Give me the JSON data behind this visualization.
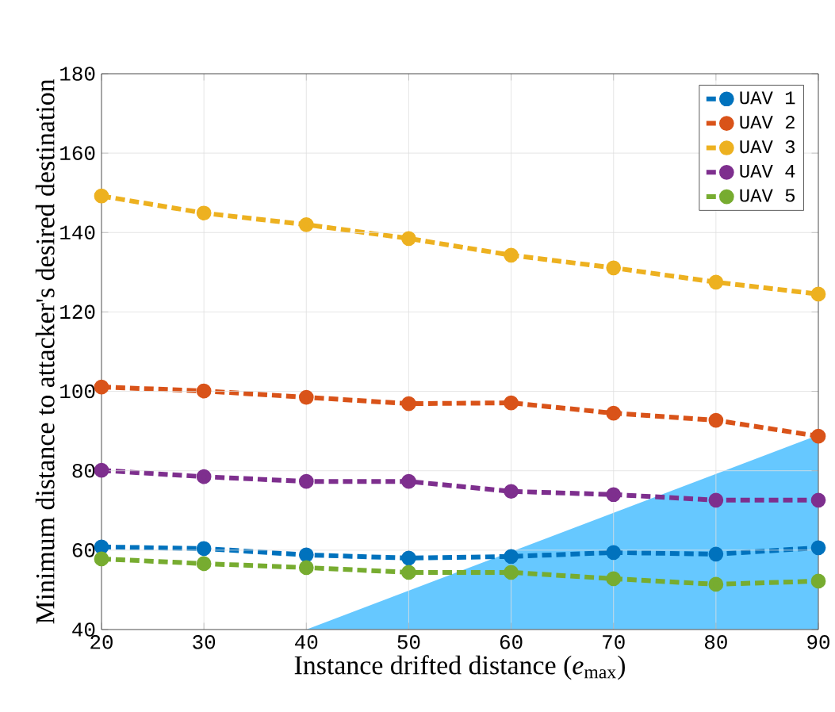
{
  "chart_data": {
    "type": "line",
    "xlabel": "Instance drifted distance (*e*$_{max}$)",
    "ylabel": "Minimum distance to attacker's desired destination",
    "x": [
      20,
      30,
      40,
      50,
      60,
      70,
      80,
      90
    ],
    "series": [
      {
        "type": "area",
        "marker": "none",
        "color": "#66c8ff",
        "x": [
          40,
          90
        ],
        "values": [
          40,
          89
        ]
      },
      {
        "name": "UAV 1",
        "color": "#0072bd",
        "values": [
          60.8,
          60.4,
          58.8,
          58.0,
          58.4,
          59.4,
          59.0,
          60.6
        ]
      },
      {
        "name": "UAV 2",
        "color": "#d95319",
        "values": [
          101.1,
          100.1,
          98.5,
          96.9,
          97.1,
          94.5,
          92.7,
          88.7
        ]
      },
      {
        "name": "UAV 3",
        "color": "#edb120",
        "values": [
          149.2,
          144.9,
          142.0,
          138.5,
          134.3,
          131.1,
          127.5,
          124.5
        ]
      },
      {
        "name": "UAV 4",
        "color": "#7e2f8e",
        "values": [
          80.1,
          78.5,
          77.3,
          77.3,
          74.8,
          74.0,
          72.6,
          72.6
        ]
      },
      {
        "name": "UAV 5",
        "color": "#77ac30",
        "values": [
          57.8,
          56.6,
          55.6,
          54.4,
          54.4,
          52.8,
          51.4,
          52.2
        ]
      }
    ],
    "xlim": [
      20,
      90
    ],
    "ylim": [
      40,
      180
    ],
    "xticks": [
      20,
      30,
      40,
      50,
      60,
      70,
      80,
      90
    ],
    "yticks": [
      40,
      60,
      80,
      100,
      120,
      140,
      160,
      180
    ],
    "grid": true,
    "legend": "top right",
    "marker": "circle",
    "line_style": "dashed"
  }
}
